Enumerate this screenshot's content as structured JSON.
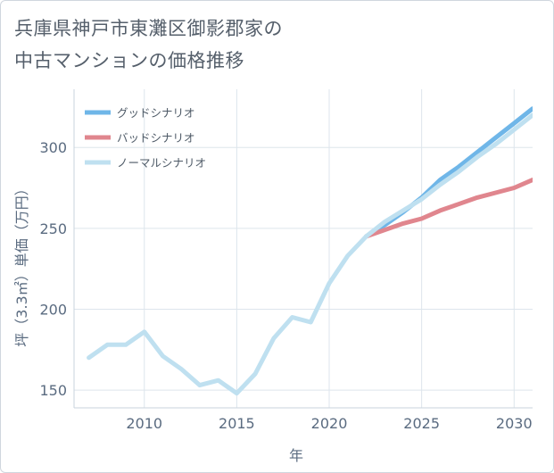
{
  "title": {
    "line1": "兵庫県神戸市東灘区御影郡家の",
    "line2": "中古マンションの価格推移"
  },
  "chart_data": {
    "type": "line",
    "xlabel": "年",
    "ylabel": "坪（3.3㎡）単価（万円）",
    "xlim": [
      2006.2,
      2031
    ],
    "ylim": [
      139,
      336
    ],
    "x_ticks": [
      2010,
      2015,
      2020,
      2025,
      2030
    ],
    "y_ticks": [
      150,
      200,
      250,
      300
    ],
    "grid": true,
    "legend_position": "top-left",
    "series": [
      {
        "name": "グッドシナリオ",
        "color": "#6fb6e8",
        "points": [
          [
            2022,
            245
          ],
          [
            2023,
            252
          ],
          [
            2024,
            260
          ],
          [
            2025,
            269
          ],
          [
            2026,
            280
          ],
          [
            2027,
            288
          ],
          [
            2028,
            297
          ],
          [
            2029,
            306
          ],
          [
            2030,
            315
          ],
          [
            2031,
            324
          ]
        ]
      },
      {
        "name": "バッドシナリオ",
        "color": "#e0868e",
        "points": [
          [
            2022,
            245
          ],
          [
            2023,
            249
          ],
          [
            2024,
            253
          ],
          [
            2025,
            256
          ],
          [
            2026,
            261
          ],
          [
            2027,
            265
          ],
          [
            2028,
            269
          ],
          [
            2029,
            272
          ],
          [
            2030,
            275
          ],
          [
            2031,
            280
          ]
        ]
      },
      {
        "name": "ノーマルシナリオ",
        "color": "#bfe0f0",
        "points": [
          [
            2007,
            170
          ],
          [
            2008,
            178
          ],
          [
            2009,
            178
          ],
          [
            2010,
            186
          ],
          [
            2011,
            171
          ],
          [
            2012,
            163
          ],
          [
            2013,
            153
          ],
          [
            2014,
            156
          ],
          [
            2015,
            148
          ],
          [
            2016,
            160
          ],
          [
            2017,
            182
          ],
          [
            2018,
            195
          ],
          [
            2019,
            192
          ],
          [
            2020,
            216
          ],
          [
            2021,
            233
          ],
          [
            2022,
            245
          ],
          [
            2023,
            254
          ],
          [
            2024,
            261
          ],
          [
            2025,
            268
          ],
          [
            2026,
            277
          ],
          [
            2027,
            285
          ],
          [
            2028,
            294
          ],
          [
            2029,
            302
          ],
          [
            2030,
            311
          ],
          [
            2031,
            320
          ]
        ]
      }
    ]
  }
}
